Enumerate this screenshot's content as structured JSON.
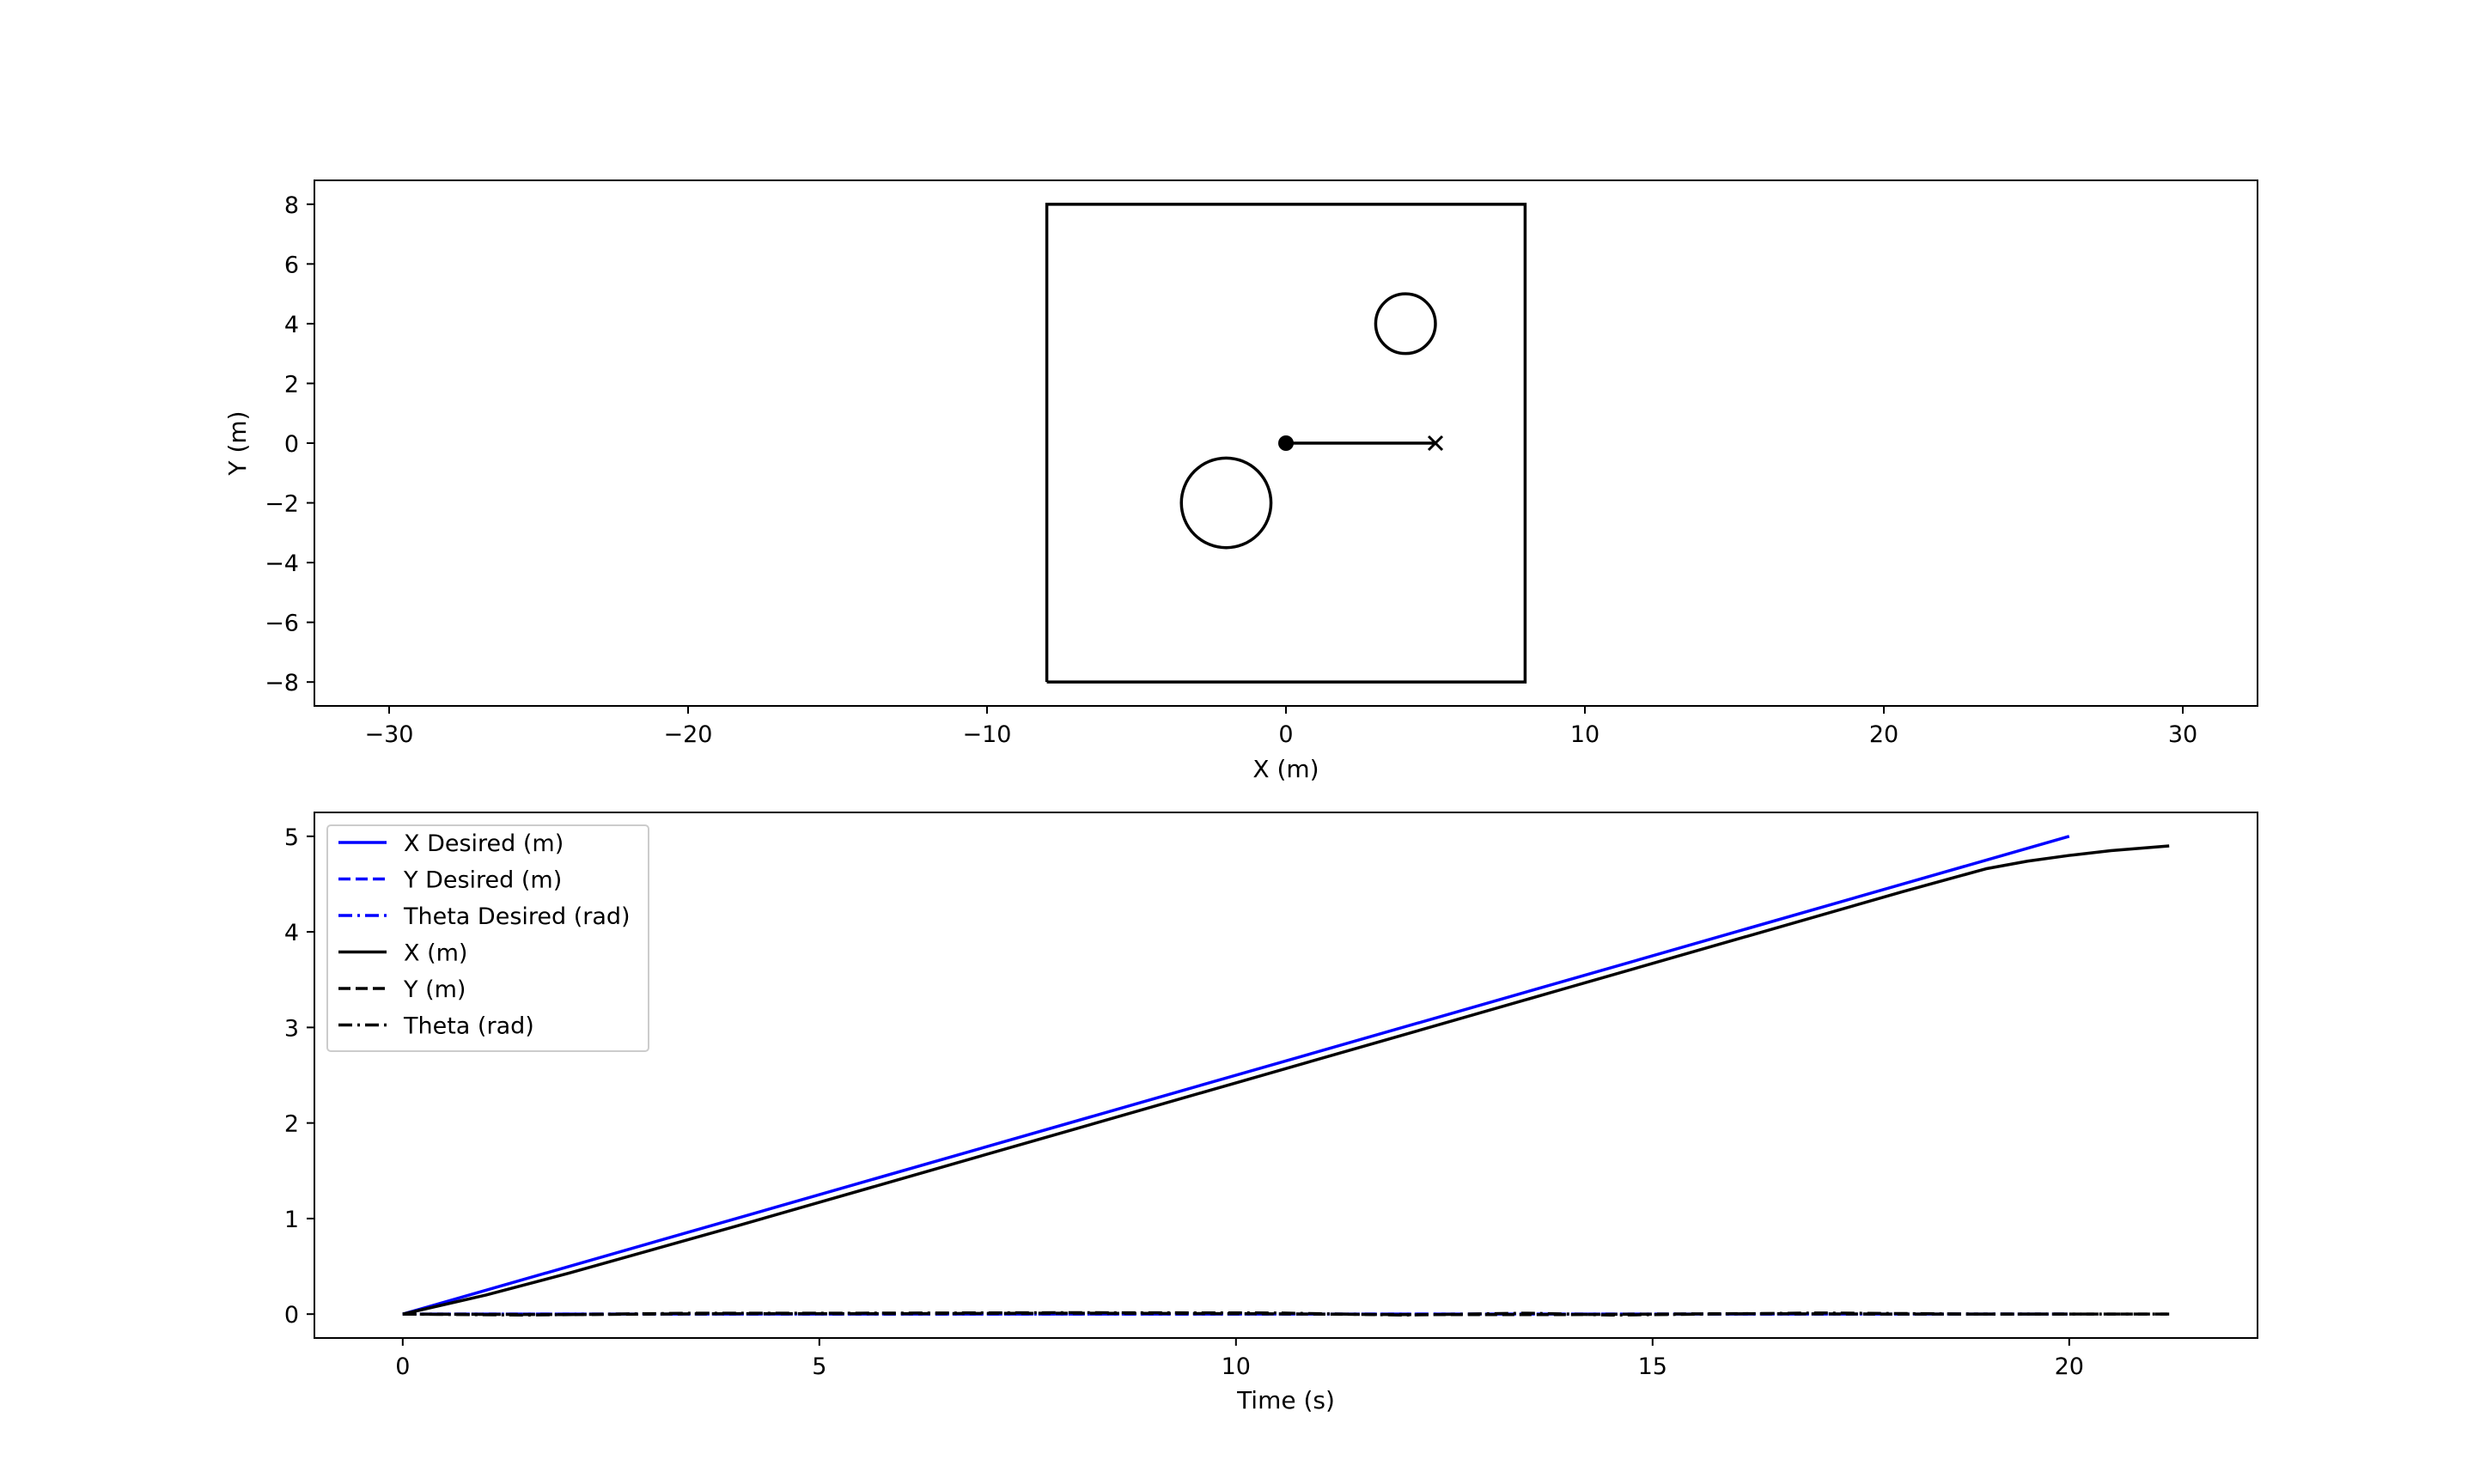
{
  "chart_data": [
    {
      "type": "line",
      "xlabel": "X (m)",
      "ylabel": "Y (m)",
      "xlim": [
        -32.5,
        32.5
      ],
      "ylim": [
        -8.8,
        8.8
      ],
      "xticks": [
        -30,
        -20,
        -10,
        0,
        10,
        20,
        30
      ],
      "yticks": [
        -8,
        -6,
        -4,
        -2,
        0,
        2,
        4,
        6,
        8
      ],
      "xtick_labels": [
        "−30",
        "−20",
        "−10",
        "0",
        "10",
        "20",
        "30"
      ],
      "ytick_labels": [
        "−8",
        "−6",
        "−4",
        "−2",
        "0",
        "2",
        "4",
        "6",
        "8"
      ],
      "grid": false,
      "boundary": {
        "x": [
          -8,
          8,
          8,
          -8,
          -8
        ],
        "y": [
          -8,
          -8,
          8,
          8,
          -8
        ]
      },
      "obstacles": [
        {
          "cx": 4,
          "cy": 4,
          "r": 1
        },
        {
          "cx": -2,
          "cy": -2,
          "r": 1.5
        }
      ],
      "path": {
        "x": [
          0,
          5
        ],
        "y": [
          0,
          0
        ]
      },
      "start": {
        "x": 0,
        "y": 0,
        "marker": "filled-circle"
      },
      "goal": {
        "x": 5,
        "y": 0,
        "marker": "x"
      }
    },
    {
      "type": "line",
      "xlabel": "Time (s)",
      "ylabel": "",
      "xlim": [
        -1.06,
        22.26
      ],
      "ylim": [
        -0.25,
        5.25
      ],
      "xticks": [
        0,
        5,
        10,
        15,
        20
      ],
      "yticks": [
        0,
        1,
        2,
        3,
        4,
        5
      ],
      "xtick_labels": [
        "0",
        "5",
        "10",
        "15",
        "20"
      ],
      "ytick_labels": [
        "0",
        "1",
        "2",
        "3",
        "4",
        "5"
      ],
      "grid": false,
      "legend_position": "top-left",
      "series": [
        {
          "name": "X Desired (m)",
          "color": "#0000ff",
          "dash": "solid",
          "x": [
            0,
            20
          ],
          "y": [
            0,
            5
          ]
        },
        {
          "name": "Y Desired (m)",
          "color": "#0000ff",
          "dash": "dashed",
          "x": [
            0,
            20
          ],
          "y": [
            0,
            0
          ]
        },
        {
          "name": "Theta Desired (rad)",
          "color": "#0000ff",
          "dash": "dashdot",
          "x": [
            0,
            20
          ],
          "y": [
            0,
            0
          ]
        },
        {
          "name": "X (m)",
          "color": "#000000",
          "dash": "solid",
          "x": [
            0,
            1,
            2,
            4,
            6,
            8,
            10,
            12,
            14,
            16,
            18,
            19,
            19.5,
            20,
            20.5,
            21.2
          ],
          "y": [
            0,
            0.2,
            0.43,
            0.92,
            1.42,
            1.92,
            2.42,
            2.92,
            3.42,
            3.92,
            4.42,
            4.66,
            4.74,
            4.8,
            4.85,
            4.9
          ]
        },
        {
          "name": "Y (m)",
          "color": "#000000",
          "dash": "dashed",
          "x": [
            0,
            2,
            4,
            6,
            8,
            10,
            12,
            14,
            16,
            18,
            20,
            21.2
          ],
          "y": [
            0,
            -0.005,
            0.005,
            0.005,
            0.01,
            0.005,
            -0.005,
            -0.005,
            0.005,
            0,
            0,
            0
          ]
        },
        {
          "name": "Theta (rad)",
          "color": "#000000",
          "dash": "dashdot",
          "x": [
            0,
            1.5,
            3.5,
            5.5,
            8,
            10.5,
            12,
            13.5,
            14.5,
            17,
            19,
            21.2
          ],
          "y": [
            0,
            -0.01,
            0.01,
            0.01,
            0.015,
            0.012,
            -0.01,
            0.01,
            -0.01,
            0.012,
            0,
            0
          ]
        }
      ]
    }
  ]
}
